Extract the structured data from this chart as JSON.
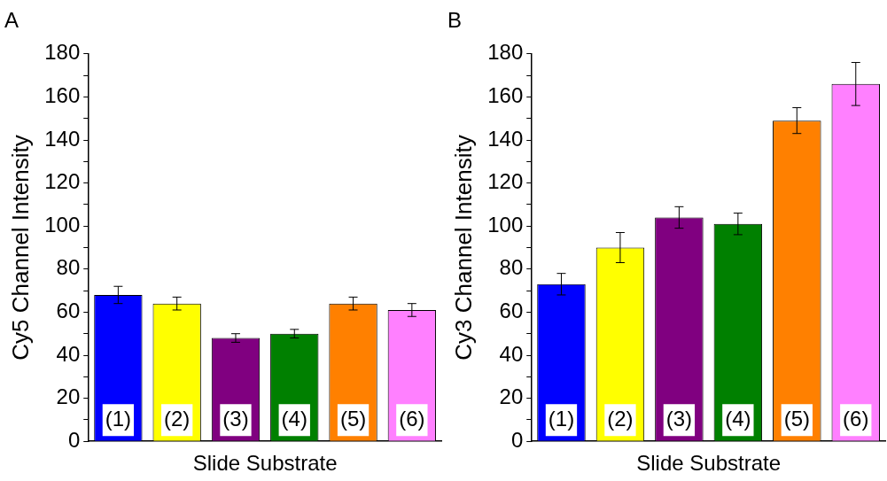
{
  "chart_data": [
    {
      "type": "bar",
      "title": "A",
      "xlabel": "Slide Substrate",
      "ylabel": "Cy5 Channel Intensity",
      "categories": [
        "(1)",
        "(2)",
        "(3)",
        "(4)",
        "(5)",
        "(6)"
      ],
      "values": [
        68,
        64,
        48,
        50,
        64,
        61
      ],
      "errors": [
        4,
        3,
        2,
        2,
        3,
        3
      ],
      "colors": [
        "#0000ff",
        "#ffff00",
        "#800080",
        "#008000",
        "#ff8000",
        "#ff80ff"
      ],
      "ylim": [
        0,
        180
      ],
      "yticks": [
        0,
        {
          "value": 10,
          "label": null
        },
        20,
        {
          "value": 30,
          "label": null
        },
        40,
        {
          "value": 50,
          "label": null
        },
        60,
        {
          "value": 70,
          "label": null
        },
        80,
        {
          "value": 90,
          "label": null
        },
        100,
        {
          "value": 110,
          "label": null
        },
        120,
        {
          "value": 130,
          "label": null
        },
        140,
        {
          "value": 150,
          "label": null
        },
        160,
        {
          "value": 170,
          "label": null
        },
        180
      ],
      "grid": false,
      "legend": false
    },
    {
      "type": "bar",
      "title": "B",
      "xlabel": "Slide Substrate",
      "ylabel": "Cy3 Channel Intensity",
      "categories": [
        "(1)",
        "(2)",
        "(3)",
        "(4)",
        "(5)",
        "(6)"
      ],
      "values": [
        73,
        90,
        104,
        101,
        149,
        166
      ],
      "errors": [
        5,
        7,
        5,
        5,
        6,
        10
      ],
      "colors": [
        "#0000ff",
        "#ffff00",
        "#800080",
        "#008000",
        "#ff8000",
        "#ff80ff"
      ],
      "ylim": [
        0,
        180
      ],
      "yticks": [
        0,
        {
          "value": 10,
          "label": null
        },
        20,
        {
          "value": 30,
          "label": null
        },
        40,
        {
          "value": 50,
          "label": null
        },
        60,
        {
          "value": 70,
          "label": null
        },
        80,
        {
          "value": 90,
          "label": null
        },
        100,
        {
          "value": 110,
          "label": null
        },
        120,
        {
          "value": 130,
          "label": null
        },
        140,
        {
          "value": 150,
          "label": null
        },
        160,
        {
          "value": 170,
          "label": null
        },
        180
      ],
      "grid": false,
      "legend": false
    }
  ]
}
